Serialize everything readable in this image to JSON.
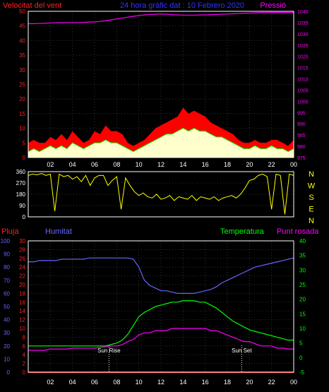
{
  "header": {
    "title": "24 hora gràfic dat : 10 Febrero 2020",
    "left_label": "Velocitat del vent",
    "right_label": "Pressió"
  },
  "colors": {
    "background": "#000000",
    "wind_gust": "#ff0000",
    "wind_avg": "#ffffcc",
    "wind_avg_line": "#00ff00",
    "pressure": "#ff00ff",
    "direction": "#ffff00",
    "humidity": "#6666ff",
    "temperature": "#00ff00",
    "dewpoint": "#ff00ff",
    "rain": "#ff0000",
    "axis_wind": "#ff2020",
    "axis_pressure": "#ff00ff",
    "axis_humidity": "#6666ff",
    "axis_temperature": "#00ff00",
    "frame": "#ffffff",
    "title": "#3333ff"
  },
  "chart_data": [
    {
      "type": "area",
      "name": "wind-pressure",
      "x_ticks": [
        "02",
        "04",
        "06",
        "08",
        "10",
        "12",
        "14",
        "16",
        "18",
        "20",
        "22",
        "00"
      ],
      "ylim_left": [
        0,
        50
      ],
      "yticks_left": [
        0,
        5,
        10,
        15,
        20,
        25,
        30,
        35,
        40,
        45,
        50
      ],
      "ylim_right": [
        975,
        1040
      ],
      "yticks_right": [
        975,
        980,
        985,
        990,
        995,
        1000,
        1005,
        1010,
        1015,
        1020,
        1025,
        1030,
        1035,
        1040
      ],
      "x": [
        0,
        0.5,
        1,
        1.5,
        2,
        2.5,
        3,
        3.5,
        4,
        4.5,
        5,
        5.5,
        6,
        6.5,
        7,
        7.5,
        8,
        8.5,
        9,
        9.5,
        10,
        10.5,
        11,
        11.5,
        12,
        12.5,
        13,
        13.5,
        14,
        14.5,
        15,
        15.5,
        16,
        16.5,
        17,
        17.5,
        18,
        18.5,
        19,
        19.5,
        20,
        20.5,
        21,
        21.5,
        22,
        22.5,
        23,
        23.5,
        24
      ],
      "series": [
        {
          "values": [
            5,
            6,
            5,
            5,
            7,
            6,
            8,
            6,
            9,
            7,
            5,
            6,
            9,
            8,
            11,
            9,
            9,
            8,
            5,
            4,
            5,
            6,
            8,
            10,
            11,
            12,
            13,
            14,
            17,
            15,
            16,
            15,
            14,
            12,
            11,
            10,
            9,
            8,
            6,
            5,
            5,
            6,
            5,
            5,
            6,
            6,
            5,
            4,
            6
          ]
        },
        {
          "values": [
            2,
            3,
            2,
            3,
            4,
            3,
            4,
            3,
            5,
            4,
            3,
            4,
            5,
            5,
            6,
            5,
            5,
            4,
            3,
            2,
            3,
            4,
            5,
            6,
            7,
            8,
            8,
            9,
            10,
            9,
            10,
            9,
            9,
            8,
            7,
            7,
            6,
            5,
            4,
            3,
            3,
            4,
            3,
            3,
            4,
            3,
            3,
            2,
            3
          ]
        },
        {
          "values": [
            1034.5,
            1034.5,
            1034.6,
            1034.7,
            1034.8,
            1034.9,
            1034.9,
            1035.0,
            1035.0,
            1035.0,
            1035.1,
            1035.2,
            1035.3,
            1035.5,
            1035.8,
            1036.2,
            1036.6,
            1037.0,
            1037.4,
            1037.8,
            1038.1,
            1038.4,
            1038.6,
            1038.7,
            1038.8,
            1038.7,
            1038.5,
            1038.4,
            1038.3,
            1038.3,
            1038.3,
            1038.4,
            1038.4,
            1038.5,
            1038.6,
            1038.7,
            1038.8,
            1038.9,
            1039.0,
            1039.1,
            1039.2,
            1039.3,
            1039.4,
            1039.4,
            1039.5,
            1039.5,
            1039.5,
            1039.5,
            1039.5
          ]
        }
      ]
    },
    {
      "type": "line",
      "name": "wind-direction",
      "ylim": [
        0,
        360
      ],
      "yticks": [
        0,
        90,
        180,
        270,
        360
      ],
      "compass_labels": [
        "N",
        "W",
        "S",
        "E",
        "N"
      ],
      "x": [
        0,
        0.4,
        0.8,
        1.2,
        1.6,
        2.0,
        2.4,
        2.8,
        3.2,
        3.6,
        4.0,
        4.4,
        4.8,
        5.2,
        5.6,
        6.0,
        6.4,
        6.8,
        7.2,
        7.6,
        8.0,
        8.4,
        8.8,
        9.2,
        9.6,
        10.0,
        10.4,
        10.8,
        11.2,
        11.6,
        12.0,
        12.4,
        12.8,
        13.2,
        13.6,
        14.0,
        14.4,
        14.8,
        15.2,
        15.6,
        16.0,
        16.4,
        16.8,
        17.2,
        17.6,
        18.0,
        18.4,
        18.8,
        19.2,
        19.6,
        20.0,
        20.4,
        20.8,
        21.2,
        21.6,
        22.0,
        22.4,
        22.8,
        23.2,
        23.6,
        24.0
      ],
      "series": [
        {
          "values": [
            330,
            340,
            335,
            345,
            330,
            340,
            45,
            340,
            320,
            330,
            300,
            320,
            280,
            330,
            250,
            310,
            330,
            330,
            250,
            290,
            320,
            60,
            310,
            250,
            200,
            170,
            190,
            160,
            150,
            180,
            140,
            150,
            170,
            130,
            160,
            150,
            140,
            170,
            130,
            160,
            150,
            140,
            160,
            130,
            150,
            160,
            170,
            150,
            180,
            230,
            290,
            300,
            330,
            340,
            320,
            60,
            340,
            330,
            20,
            340,
            330
          ]
        }
      ]
    },
    {
      "type": "line",
      "name": "humidity-temperature",
      "ylim_humidity": [
        0,
        100
      ],
      "yticks_humidity": [
        0,
        10,
        20,
        30,
        40,
        50,
        60,
        70,
        80,
        90,
        100
      ],
      "ylim_dewpoint": [
        0,
        30
      ],
      "yticks_dewpoint": [
        0,
        2,
        4,
        6,
        8,
        10,
        12,
        14,
        16,
        18,
        20,
        22,
        24,
        26,
        28,
        30
      ],
      "ylim_temperature": [
        -5,
        40
      ],
      "yticks_temperature": [
        -5,
        0,
        5,
        10,
        15,
        20,
        25,
        30,
        35,
        40
      ],
      "annotations": [
        "Sun Rise",
        "Sun Set"
      ],
      "annotation_x": [
        7.3,
        19.3
      ],
      "x": [
        0,
        0.5,
        1,
        1.5,
        2,
        2.5,
        3,
        3.5,
        4,
        4.5,
        5,
        5.5,
        6,
        6.5,
        7,
        7.5,
        8,
        8.5,
        9,
        9.5,
        10,
        10.5,
        11,
        11.5,
        12,
        12.5,
        13,
        13.5,
        14,
        14.5,
        15,
        15.5,
        16,
        16.5,
        17,
        17.5,
        18,
        18.5,
        19,
        19.5,
        20,
        20.5,
        21,
        21.5,
        22,
        22.5,
        23,
        23.5,
        24
      ],
      "series": [
        {
          "name": "Humitat",
          "values": [
            84,
            84,
            85,
            85,
            85,
            85,
            86,
            86,
            86,
            86,
            86,
            87,
            87,
            87,
            87,
            87,
            87,
            87,
            87,
            86,
            80,
            70,
            66,
            64,
            62,
            62,
            61,
            60,
            60,
            60,
            60,
            61,
            62,
            63,
            65,
            68,
            70,
            72,
            74,
            76,
            78,
            80,
            81,
            82,
            83,
            84,
            85,
            86,
            87
          ]
        },
        {
          "name": "Temperatura",
          "values": [
            4,
            4,
            4,
            4,
            4,
            4,
            4,
            4,
            4,
            4,
            4,
            4,
            4,
            4,
            4,
            4.5,
            5,
            6,
            8,
            11,
            14,
            15.5,
            16.5,
            17.5,
            18,
            18.5,
            19,
            19,
            19.5,
            19.5,
            19.5,
            19,
            19,
            18,
            17,
            15.5,
            14,
            12.5,
            11.5,
            10.5,
            9.5,
            9,
            8.5,
            8,
            7.5,
            7,
            6.5,
            6,
            6
          ]
        },
        {
          "name": "Punt rosada",
          "values": [
            5,
            5,
            5,
            5,
            5.3,
            5.3,
            5.3,
            5.3,
            5.5,
            5.5,
            5.5,
            5.5,
            5.5,
            5.7,
            5.8,
            6,
            6,
            6.3,
            7,
            7.5,
            8.5,
            9,
            9,
            9.5,
            9.5,
            9.5,
            10,
            10,
            10,
            10,
            10,
            10,
            10,
            9.5,
            9.5,
            9,
            8.5,
            8,
            7.5,
            7,
            7,
            6.5,
            6,
            6,
            6,
            5.5,
            5.5,
            5.3,
            5.3
          ]
        },
        {
          "name": "Pluja",
          "values": [
            0,
            0,
            0,
            0,
            0,
            0,
            0,
            0,
            0,
            0,
            0,
            0,
            0,
            0,
            0,
            0,
            0,
            0,
            0,
            0,
            0,
            0,
            0,
            0,
            0,
            0,
            0,
            0,
            0,
            0,
            0,
            0,
            0,
            0,
            0,
            0,
            0,
            0,
            0,
            0,
            0,
            0,
            0,
            0,
            0,
            0,
            0,
            0,
            0
          ]
        }
      ]
    }
  ],
  "bottom_labels": {
    "rain": "Pluja",
    "humidity": "Humitat",
    "temperature": "Temperatura",
    "dewpoint": "Punt rosada"
  }
}
